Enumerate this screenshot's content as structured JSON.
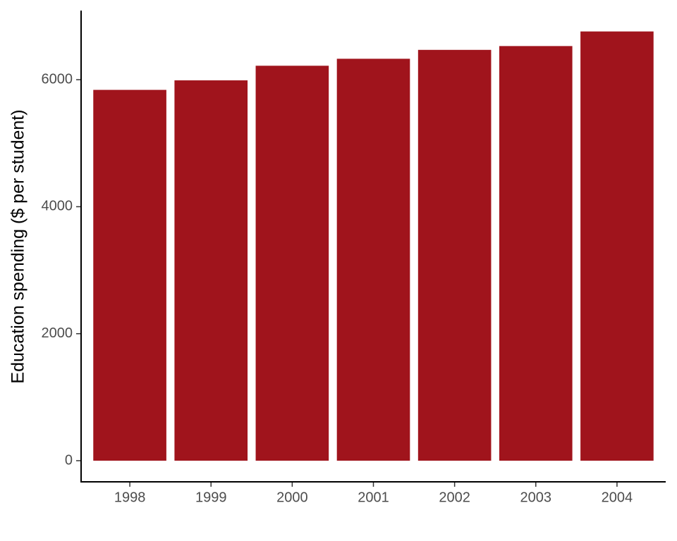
{
  "chart_data": {
    "type": "bar",
    "y_label": "Education spending ($ per student)",
    "categories": [
      "1998",
      "1999",
      "2000",
      "2001",
      "2002",
      "2003",
      "2004"
    ],
    "values": [
      5840,
      5990,
      6220,
      6330,
      6470,
      6530,
      6760
    ],
    "color": "#a0141c",
    "ylim": [
      -333,
      7089
    ],
    "yticks": [
      0,
      2000,
      4000,
      6000
    ],
    "grid": false
  }
}
